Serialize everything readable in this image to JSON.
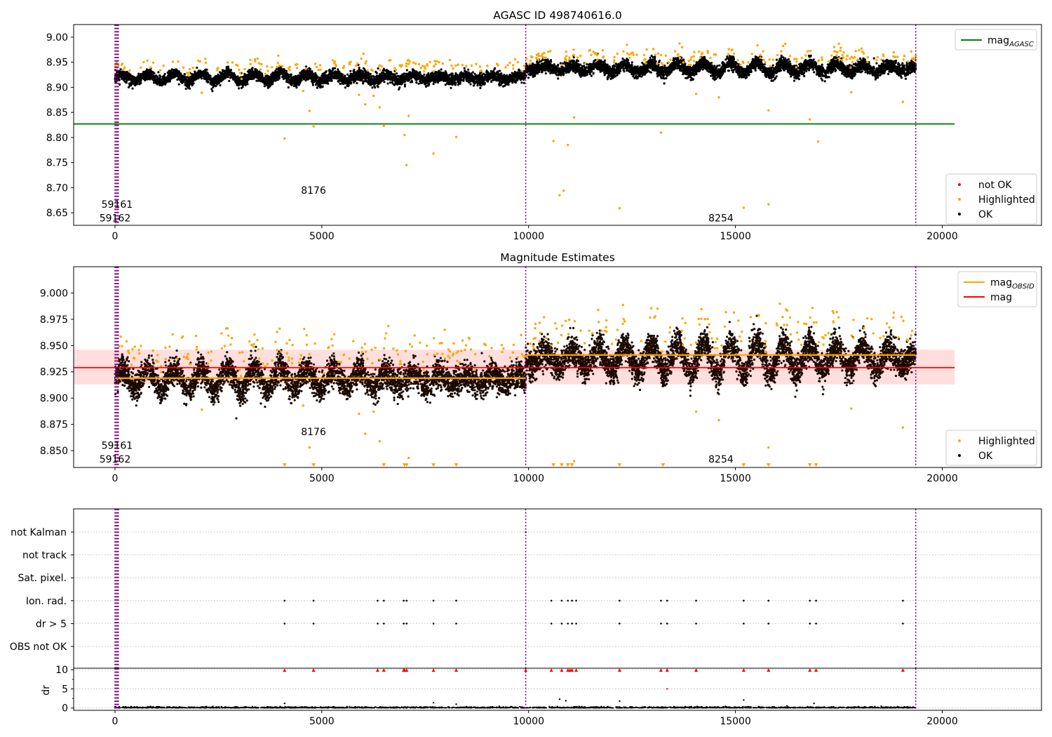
{
  "chart_data": [
    {
      "type": "scatter",
      "title": "AGASC ID 498740616.0",
      "xlim": [
        -1000,
        22400
      ],
      "ylim": [
        8.625,
        9.025
      ],
      "xticks": [
        0,
        5000,
        10000,
        15000,
        20000
      ],
      "yticks": [
        8.65,
        8.7,
        8.75,
        8.8,
        8.85,
        8.9,
        8.95,
        9.0
      ],
      "ytick_labels": [
        "8.65",
        "8.70",
        "8.75",
        "8.80",
        "8.85",
        "8.90",
        "8.95",
        "9.00"
      ],
      "vlines_x": [
        0,
        25,
        55,
        80,
        9930,
        19360
      ],
      "lines": [
        {
          "name": "mag_AGASC",
          "y": 8.827,
          "x_range": [
            -1000,
            20300
          ],
          "color": "#008000"
        }
      ],
      "annotations": [
        {
          "text": "59161",
          "x": 50,
          "y": 8.667
        },
        {
          "text": "59162",
          "x": 0,
          "y": 8.64
        },
        {
          "text": "8176",
          "x": 4800,
          "y": 8.695
        },
        {
          "text": "8254",
          "x": 14650,
          "y": 8.64
        }
      ],
      "band_model": {
        "segments": [
          {
            "x": [
              0,
              9930
            ],
            "center": 8.919,
            "spread": 0.01,
            "wave_amp": 0.009
          },
          {
            "x": [
              9930,
              19360
            ],
            "center": 8.938,
            "spread": 0.011,
            "wave_amp": 0.011
          }
        ]
      },
      "highlighted_outliers": [
        [
          4100,
          8.798
        ],
        [
          4800,
          8.822
        ],
        [
          4700,
          8.853
        ],
        [
          6050,
          8.866
        ],
        [
          6250,
          8.883
        ],
        [
          6400,
          8.86
        ],
        [
          6500,
          8.823
        ],
        [
          7000,
          8.805
        ],
        [
          7050,
          8.745
        ],
        [
          7100,
          8.843
        ],
        [
          7700,
          8.768
        ],
        [
          8250,
          8.801
        ],
        [
          10600,
          8.793
        ],
        [
          10750,
          8.685
        ],
        [
          10850,
          8.694
        ],
        [
          10950,
          8.785
        ],
        [
          11100,
          8.84
        ],
        [
          12200,
          8.659
        ],
        [
          13200,
          8.81
        ],
        [
          14050,
          8.887
        ],
        [
          14600,
          8.88
        ],
        [
          15200,
          8.66
        ],
        [
          15800,
          8.854
        ],
        [
          15800,
          8.667
        ],
        [
          16800,
          8.836
        ],
        [
          17000,
          8.792
        ],
        [
          17800,
          8.89
        ],
        [
          19050,
          8.871
        ],
        [
          2100,
          8.889
        ],
        [
          4550,
          8.893
        ],
        [
          5900,
          8.885
        ]
      ],
      "legends": [
        {
          "position": "upper right",
          "entries": [
            {
              "label": "mag",
              "subscript": "AGASC",
              "color": "#008000",
              "marker": "line"
            }
          ]
        },
        {
          "position": "lower right",
          "entries": [
            {
              "label": "not OK",
              "color": "#ff0000",
              "marker": "dot"
            },
            {
              "label": "Highlighted",
              "color": "#ffa500",
              "marker": "dot"
            },
            {
              "label": "OK",
              "color": "#000000",
              "marker": "dot"
            }
          ]
        }
      ]
    },
    {
      "type": "scatter",
      "title": "Magnitude Estimates",
      "xlim": [
        -1000,
        22400
      ],
      "ylim": [
        8.834,
        9.025
      ],
      "xticks": [
        0,
        5000,
        10000,
        15000,
        20000
      ],
      "yticks": [
        8.85,
        8.875,
        8.9,
        8.925,
        8.95,
        8.975,
        9.0
      ],
      "ytick_labels": [
        "8.850",
        "8.875",
        "8.900",
        "8.925",
        "8.950",
        "8.975",
        "9.000"
      ],
      "vlines_x": [
        0,
        25,
        55,
        80,
        9930,
        19360
      ],
      "mag": {
        "y": 8.929,
        "band": [
          8.913,
          8.946
        ],
        "x_range": [
          0,
          20300
        ],
        "color": "#ff0000"
      },
      "mag_obsid": [
        {
          "x": [
            0,
            9930
          ],
          "y": 8.919
        },
        {
          "x": [
            9930,
            19360
          ],
          "y": 8.941
        }
      ],
      "annotations": [
        {
          "text": "59161",
          "x": 50,
          "y": 8.855
        },
        {
          "text": "59162",
          "x": 0,
          "y": 8.842
        },
        {
          "text": "8176",
          "x": 4800,
          "y": 8.868
        },
        {
          "text": "8254",
          "x": 14650,
          "y": 8.842
        }
      ],
      "band_model": {
        "segments": [
          {
            "x": [
              0,
              9930
            ],
            "center": 8.918,
            "spread": 0.012,
            "wave_amp": 0.011
          },
          {
            "x": [
              9930,
              19360
            ],
            "center": 8.938,
            "spread": 0.013,
            "wave_amp": 0.015
          }
        ]
      },
      "highlighted_outliers": [
        [
          4700,
          8.853
        ],
        [
          6050,
          8.866
        ],
        [
          6250,
          8.887
        ],
        [
          6400,
          8.859
        ],
        [
          7100,
          8.843
        ],
        [
          11100,
          8.84
        ],
        [
          14050,
          8.887
        ],
        [
          14600,
          8.879
        ],
        [
          15800,
          8.853
        ],
        [
          17800,
          8.89
        ],
        [
          19050,
          8.872
        ],
        [
          2100,
          8.889
        ],
        [
          4550,
          8.893
        ],
        [
          5900,
          8.885
        ]
      ],
      "clipped_x": [
        4100,
        4800,
        6500,
        7000,
        7050,
        7700,
        8250,
        10600,
        10800,
        10950,
        11050,
        12200,
        13250,
        15200,
        15800,
        16800,
        16950
      ],
      "legends": [
        {
          "position": "upper right",
          "entries": [
            {
              "label": "mag",
              "subscript": "OBSID",
              "color": "#ffa500",
              "marker": "line"
            },
            {
              "label": "mag",
              "color": "#ff0000",
              "marker": "line"
            }
          ]
        },
        {
          "position": "lower right",
          "entries": [
            {
              "label": "Highlighted",
              "color": "#ffa500",
              "marker": "dot"
            },
            {
              "label": "OK",
              "color": "#000000",
              "marker": "dot"
            }
          ]
        }
      ]
    },
    {
      "type": "scatter",
      "title": "",
      "xlim": [
        -1000,
        22400
      ],
      "xticks": [
        0,
        5000,
        10000,
        15000,
        20000
      ],
      "categories": [
        "not Kalman",
        "not track",
        "Sat. pixel.",
        "Ion. rad.",
        "dr > 5",
        "OBS not OK"
      ],
      "vlines_x": [
        0,
        25,
        55,
        80,
        9930,
        19360
      ],
      "flags": {
        "not Kalman": [
          9930
        ],
        "not track": [],
        "Sat. pixel.": [],
        "Ion. rad.": [
          4100,
          4800,
          6350,
          6500,
          6980,
          7050,
          7700,
          8250,
          10550,
          10800,
          10950,
          11050,
          11150,
          12200,
          13200,
          13350,
          14050,
          15200,
          15800,
          16800,
          16950,
          19050
        ],
        "dr > 5": [
          4100,
          4800,
          6350,
          6500,
          6980,
          7050,
          7700,
          8250,
          10550,
          10800,
          10950,
          11050,
          11150,
          12200,
          13200,
          13350,
          14050,
          15200,
          15800,
          16800,
          16950,
          19050
        ],
        "OBS not OK": []
      },
      "ylabel": "dr",
      "dr_yticks": [
        0,
        5,
        10
      ],
      "dr_ylim": [
        -0.6,
        10.4
      ],
      "dr_clipped_x": [
        4100,
        4800,
        6350,
        6500,
        6980,
        7000,
        7050,
        7700,
        8250,
        9930,
        10550,
        10800,
        10950,
        11000,
        11050,
        11150,
        12200,
        13200,
        13350,
        14050,
        15200,
        15800,
        16800,
        16950,
        19050
      ],
      "dr_outliers": [
        [
          4100,
          1.2
        ],
        [
          7700,
          1.4
        ],
        [
          8250,
          1.0
        ],
        [
          10750,
          2.3
        ],
        [
          10900,
          1.9
        ],
        [
          12200,
          1.8
        ],
        [
          13350,
          5.0
        ],
        [
          15200,
          2.1
        ],
        [
          16900,
          1.2
        ]
      ]
    }
  ]
}
